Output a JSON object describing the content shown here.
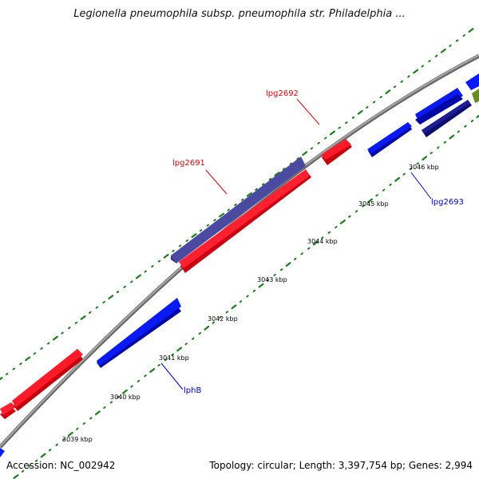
{
  "title": "Legionella pneumophila subsp. pneumophila str. Philadelphia ...",
  "footer": {
    "accession": "Accession: NC_002942",
    "summary": "Topology: circular; Length: 3,397,754 bp; Genes: 2,994"
  },
  "kbp_labels": [
    "3039 kbp",
    "3040 kbp",
    "3041 kbp",
    "3042 kbp",
    "3043 kbp",
    "3044 kbp",
    "3045 kbp",
    "3046 kbp"
  ],
  "gene_labels": [
    {
      "text": "lpg2692",
      "color": "#e0000b"
    },
    {
      "text": "lpg2691",
      "color": "#e0000b"
    },
    {
      "text": "lpg2693",
      "color": "#0000d0"
    },
    {
      "text": "lphB",
      "color": "#0000d0"
    }
  ],
  "colors": {
    "backbone": "#8a8a8a",
    "tick_green": "#1a7f1a",
    "gene_red": "#f00010",
    "gene_blue": "#0a14f0",
    "gene_slate": "#4a4a96",
    "gene_navy": "#0c0c70",
    "gene_olive": "#6a8a2a"
  }
}
